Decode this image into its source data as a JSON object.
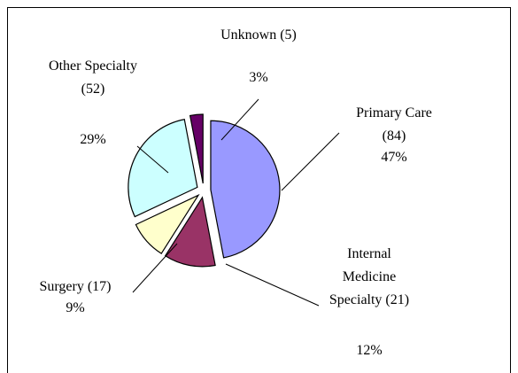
{
  "chart_data": {
    "type": "pie",
    "categories": [
      "Primary Care (84)",
      "Internal Medicine Specialty (21)",
      "Surgery (17)",
      "Other Specialty (52)",
      "Unknown (5)"
    ],
    "values": [
      47,
      12,
      9,
      29,
      3
    ],
    "value_labels": [
      "47%",
      "12%",
      "9%",
      "29%",
      "3%"
    ],
    "colors": [
      "#9999ff",
      "#993366",
      "#ffffcc",
      "#ccffff",
      "#660066"
    ]
  }
}
